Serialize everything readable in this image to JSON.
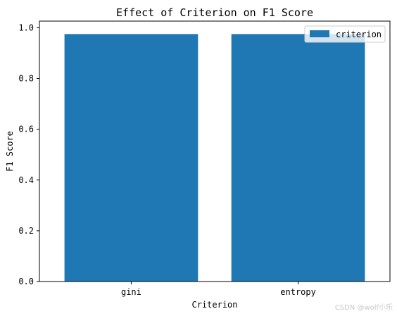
{
  "chart_data": {
    "type": "bar",
    "title": "Effect of Criterion on F1 Score",
    "xlabel": "Criterion",
    "ylabel": "F1 Score",
    "categories": [
      "gini",
      "entropy"
    ],
    "series": [
      {
        "name": "criterion",
        "values": [
          0.975,
          0.975
        ]
      }
    ],
    "ylim": [
      0,
      1.026
    ],
    "yticks": [
      0.0,
      0.2,
      0.4,
      0.6,
      0.8,
      1.0
    ],
    "ytick_labels": [
      "0.0",
      "0.2",
      "0.4",
      "0.6",
      "0.8",
      "1.0"
    ],
    "grid": false,
    "legend_position": "top-right",
    "bar_color": "#1f77b4"
  },
  "watermark": "CSDN @wolf小乐"
}
